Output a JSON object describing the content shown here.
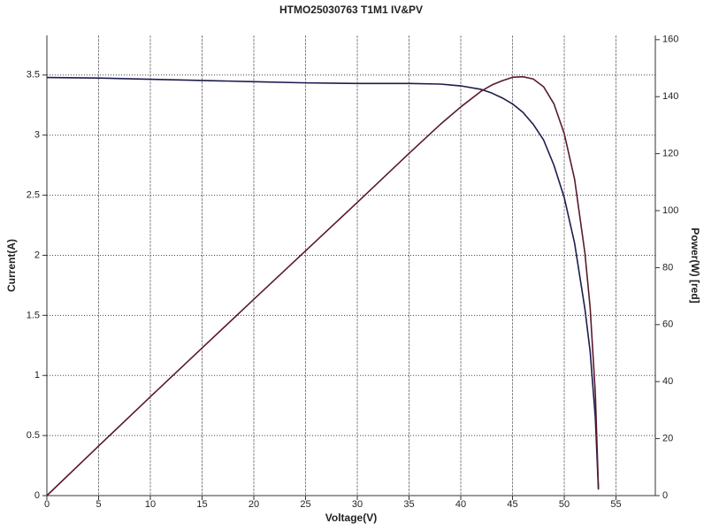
{
  "chart_data": {
    "type": "line",
    "title": "HTMO25030763 T1M1 IV&PV",
    "x_label": "Voltage(V)",
    "y_label": "Current(A)",
    "y2_label": "Power(W) [red]",
    "x": [
      0,
      5,
      10,
      15,
      20,
      25,
      30,
      35,
      38,
      40,
      42,
      43,
      44,
      45,
      46,
      47,
      48,
      49,
      50,
      51,
      52,
      52.5,
      53,
      53.3
    ],
    "series": [
      {
        "color": "#1c1c4e",
        "values": [
          3.48,
          3.475,
          3.465,
          3.455,
          3.445,
          3.435,
          3.43,
          3.43,
          3.425,
          3.41,
          3.38,
          3.35,
          3.31,
          3.26,
          3.19,
          3.09,
          2.96,
          2.75,
          2.48,
          2.1,
          1.55,
          1.2,
          0.65,
          0.05
        ]
      },
      {
        "color": "#5a1a2a",
        "axis": "y2",
        "values": [
          0,
          17.4,
          34.7,
          51.8,
          68.9,
          85.9,
          102.9,
          120.1,
          130.2,
          136.4,
          142.0,
          144.1,
          145.6,
          146.8,
          147.0,
          146.2,
          143.5,
          137.5,
          127.0,
          111.0,
          85.0,
          66.0,
          36.0,
          2.7
        ]
      }
    ],
    "xlim": [
      0,
      58.8
    ],
    "ylim": [
      0,
      3.83
    ],
    "y2lim": [
      0,
      161.5
    ],
    "xticks": [
      0,
      5,
      10,
      15,
      20,
      25,
      30,
      35,
      40,
      45,
      50,
      55
    ],
    "yticks": [
      0,
      0.5,
      1,
      1.5,
      2,
      2.5,
      3,
      3.5
    ],
    "y2ticks": [
      0,
      20,
      40,
      60,
      80,
      100,
      120,
      140,
      160
    ],
    "grid": true
  }
}
